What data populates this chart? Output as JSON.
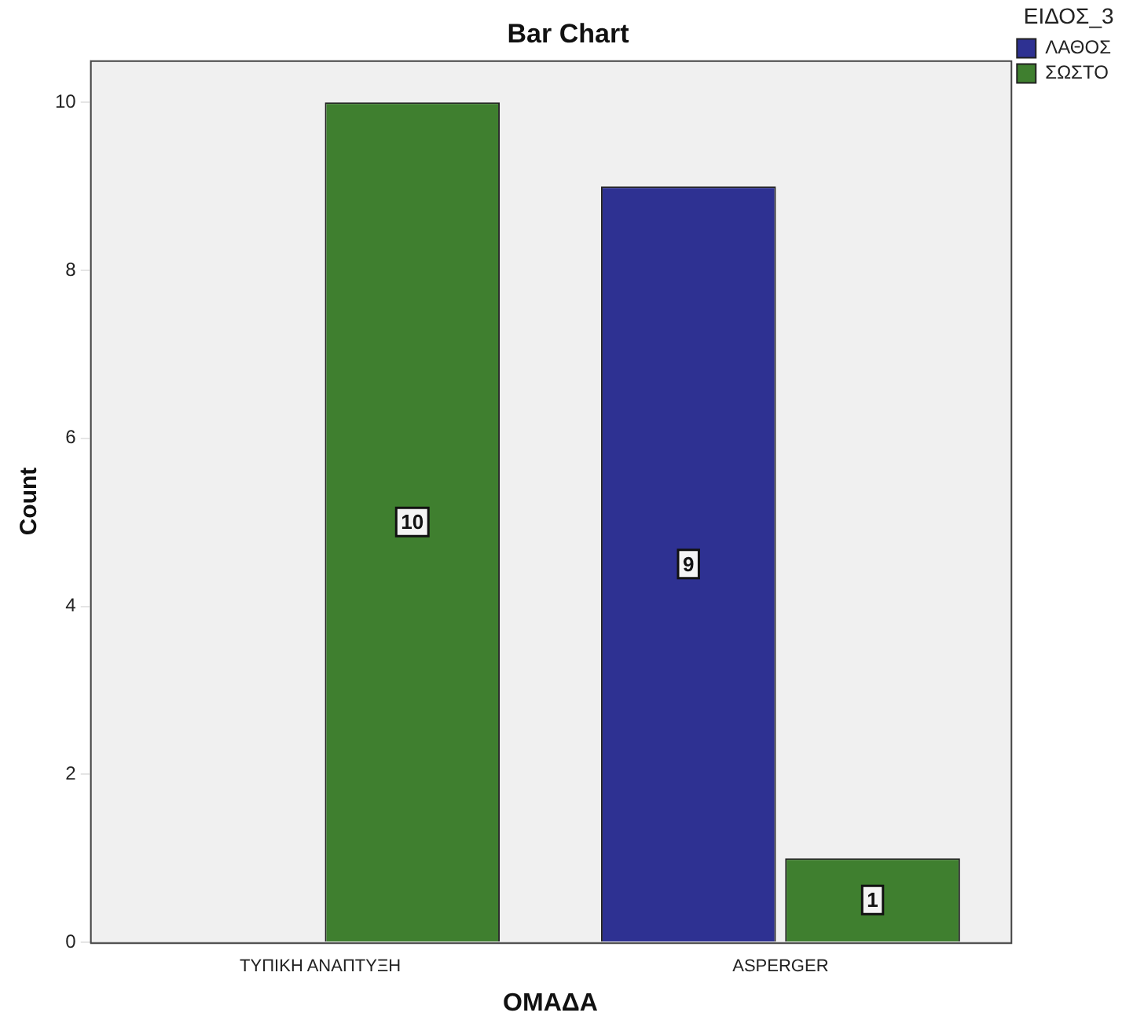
{
  "chart_data": {
    "type": "bar",
    "title": "Bar Chart",
    "xlabel": "ΟΜΑΔΑ",
    "ylabel": "Count",
    "legend_title": "ΕΙΔΟΣ_3",
    "categories": [
      "ΤΥΠΙΚΗ ΑΝΑΠΤΥΞΗ",
      "ASPERGER"
    ],
    "series": [
      {
        "name": "ΛΑΘΟΣ",
        "color": "#2e3192",
        "values": [
          null,
          9
        ]
      },
      {
        "name": "ΣΩΣΤΟ",
        "color": "#3f7f2f",
        "values": [
          10,
          1
        ]
      }
    ],
    "ylim": [
      0,
      10.5
    ],
    "yticks": [
      0,
      2,
      4,
      6,
      8,
      10
    ],
    "grid": false,
    "legend": "top right",
    "data_labels": true
  }
}
